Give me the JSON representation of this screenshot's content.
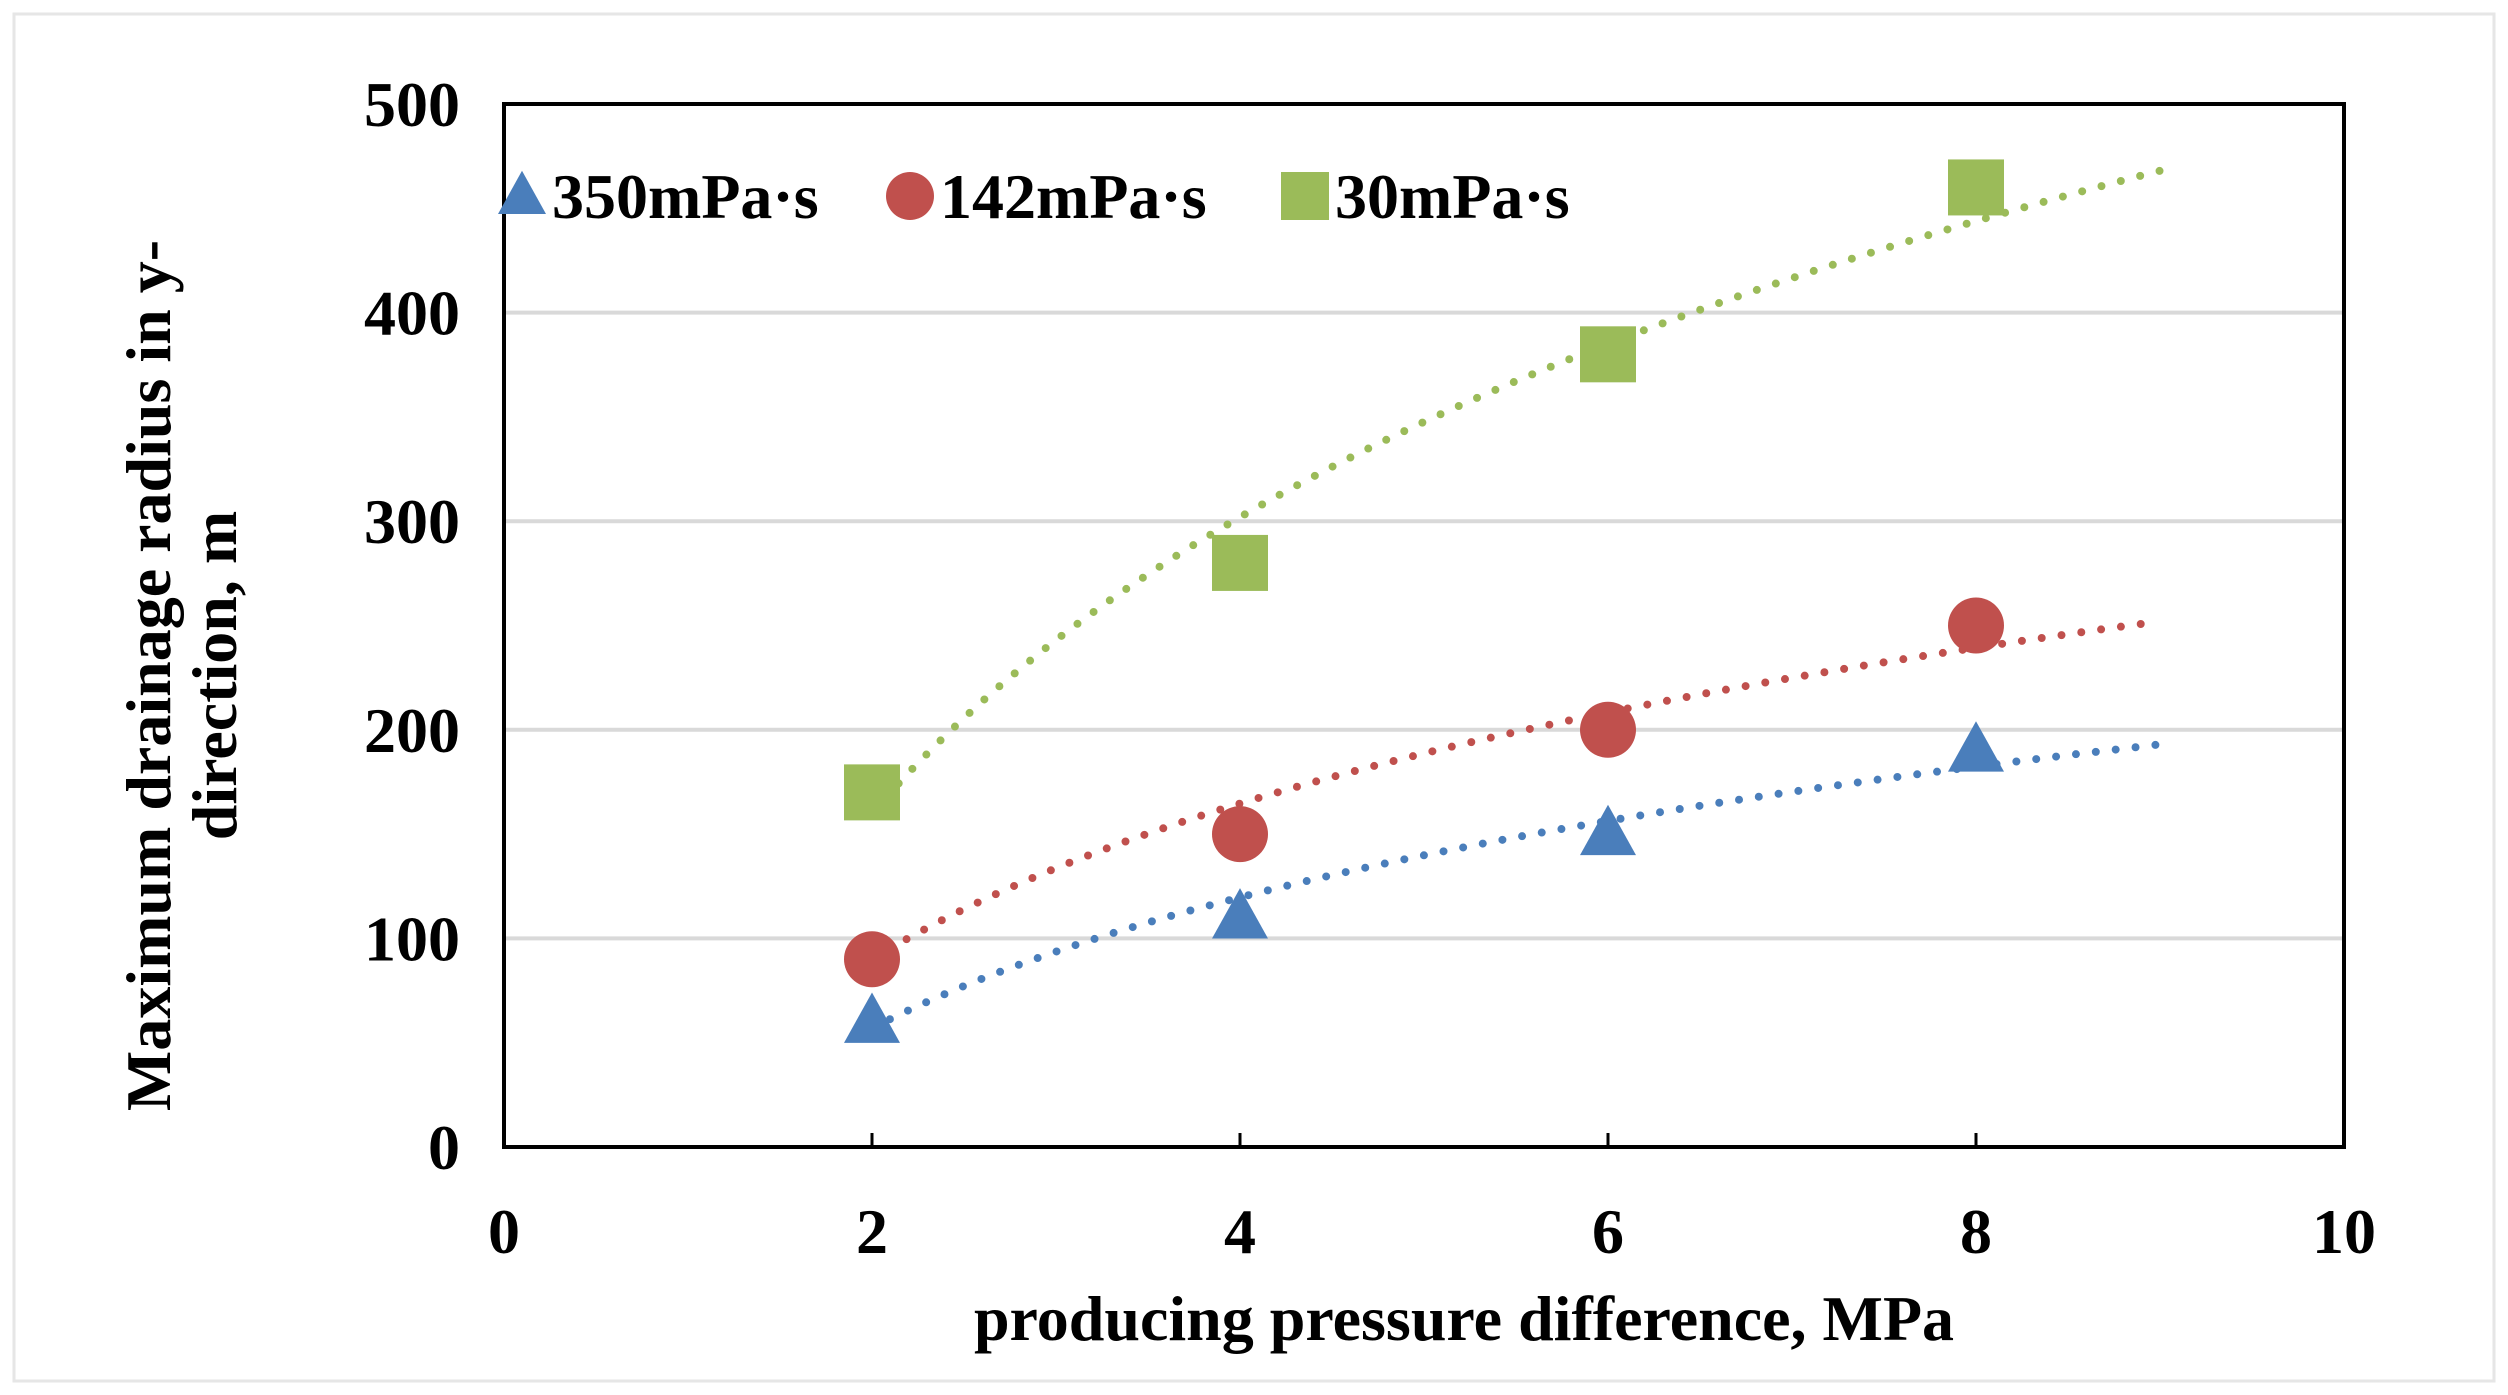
{
  "chart_data": {
    "type": "scatter",
    "title": "",
    "xlabel": "producing pressure difference, MPa",
    "ylabel": "Maximum drainage radius in y-direction, m",
    "ylabel_lines": [
      "Maximum drainage radius in y-",
      "direction, m"
    ],
    "xlim": [
      0,
      10
    ],
    "ylim": [
      0,
      500
    ],
    "xticks": [
      0,
      2,
      4,
      6,
      8,
      10
    ],
    "yticks": [
      0,
      100,
      200,
      300,
      400,
      500
    ],
    "grid": "horizontal",
    "legend_position": "top-left",
    "series": [
      {
        "name": "350mPa·s",
        "marker": "triangle",
        "color": "#4a7ebb",
        "x": [
          2,
          4,
          6,
          8
        ],
        "y": [
          60,
          110,
          150,
          190
        ],
        "trendline": {
          "type": "logarithmic",
          "x_range": [
            2,
            9
          ],
          "y_at_start": 57,
          "y_at_end": 193
        }
      },
      {
        "name": "142mPa·s",
        "marker": "circle",
        "color": "#c0504d",
        "x": [
          2,
          4,
          6,
          8
        ],
        "y": [
          90,
          150,
          200,
          250
        ],
        "trendline": {
          "type": "logarithmic",
          "x_range": [
            2,
            9
          ],
          "y_at_start": 90,
          "y_at_end": 252
        }
      },
      {
        "name": "30mPa·s",
        "marker": "square",
        "color": "#9bbb59",
        "x": [
          2,
          4,
          6,
          8
        ],
        "y": [
          170,
          280,
          380,
          460
        ],
        "trendline": {
          "type": "logarithmic",
          "x_range": [
            2,
            9
          ],
          "y_at_start": 160,
          "y_at_end": 468
        }
      }
    ]
  }
}
